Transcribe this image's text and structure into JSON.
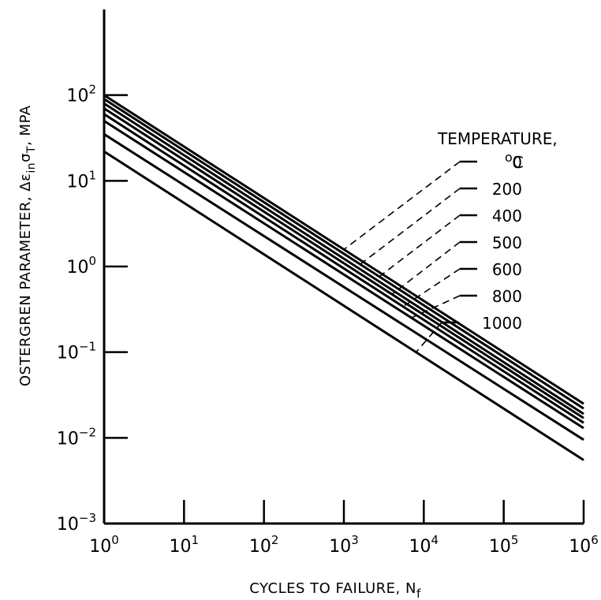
{
  "chart_data": {
    "type": "line",
    "x_scale": "log",
    "y_scale": "log",
    "xlim": [
      1,
      1000000
    ],
    "ylim": [
      0.001,
      1000
    ],
    "grid": false,
    "xlabel": "CYCLES TO FAILURE, N",
    "xlabel_subscript": "f",
    "ylabel": "OSTERGREN PARAMETER, Δε",
    "ylabel_sub1": "in",
    "ylabel_mid": "σ",
    "ylabel_sub2": "T",
    "ylabel_unit": ", MPA",
    "x_ticks": [
      {
        "base": "10",
        "exp": "0",
        "value": 1
      },
      {
        "base": "10",
        "exp": "1",
        "value": 10
      },
      {
        "base": "10",
        "exp": "2",
        "value": 100
      },
      {
        "base": "10",
        "exp": "3",
        "value": 1000
      },
      {
        "base": "10",
        "exp": "4",
        "value": 10000
      },
      {
        "base": "10",
        "exp": "5",
        "value": 100000
      },
      {
        "base": "10",
        "exp": "6",
        "value": 1000000
      }
    ],
    "y_ticks": [
      {
        "base": "10",
        "exp": "−3",
        "value": 0.001
      },
      {
        "base": "10",
        "exp": "−2",
        "value": 0.01
      },
      {
        "base": "10",
        "exp": "−1",
        "value": 0.1
      },
      {
        "base": "10",
        "exp": "0",
        "value": 1
      },
      {
        "base": "10",
        "exp": "1",
        "value": 10
      },
      {
        "base": "10",
        "exp": "2",
        "value": 100
      }
    ],
    "legend": {
      "title_line1": "TEMPERATURE,",
      "title_line2": "C",
      "title_line2_prefix": "o",
      "placement": "right"
    },
    "series": [
      {
        "name": "0",
        "x": [
          1,
          1000000
        ],
        "y": [
          100,
          0.025
        ],
        "label_at_x": 1000
      },
      {
        "name": "200",
        "x": [
          1,
          1000000
        ],
        "y": [
          90,
          0.022
        ],
        "label_at_x": 1600
      },
      {
        "name": "400",
        "x": [
          1,
          1000000
        ],
        "y": [
          80,
          0.019
        ],
        "label_at_x": 2500
      },
      {
        "name": "500",
        "x": [
          1,
          1000000
        ],
        "y": [
          70,
          0.017
        ],
        "label_at_x": 4000
      },
      {
        "name": "600",
        "x": [
          1,
          1000000
        ],
        "y": [
          60,
          0.015
        ],
        "label_at_x": 5500
      },
      {
        "name": "800",
        "x": [
          1,
          1000000
        ],
        "y": [
          50,
          0.013
        ],
        "label_at_x": 7000
      },
      {
        "name": "",
        "x": [
          1,
          1000000
        ],
        "y": [
          35,
          0.0095
        ],
        "label_at_x": 7000
      },
      {
        "name": "1000",
        "x": [
          1,
          1000000
        ],
        "y": [
          22,
          0.0055
        ],
        "label_at_x": 8000
      }
    ]
  }
}
